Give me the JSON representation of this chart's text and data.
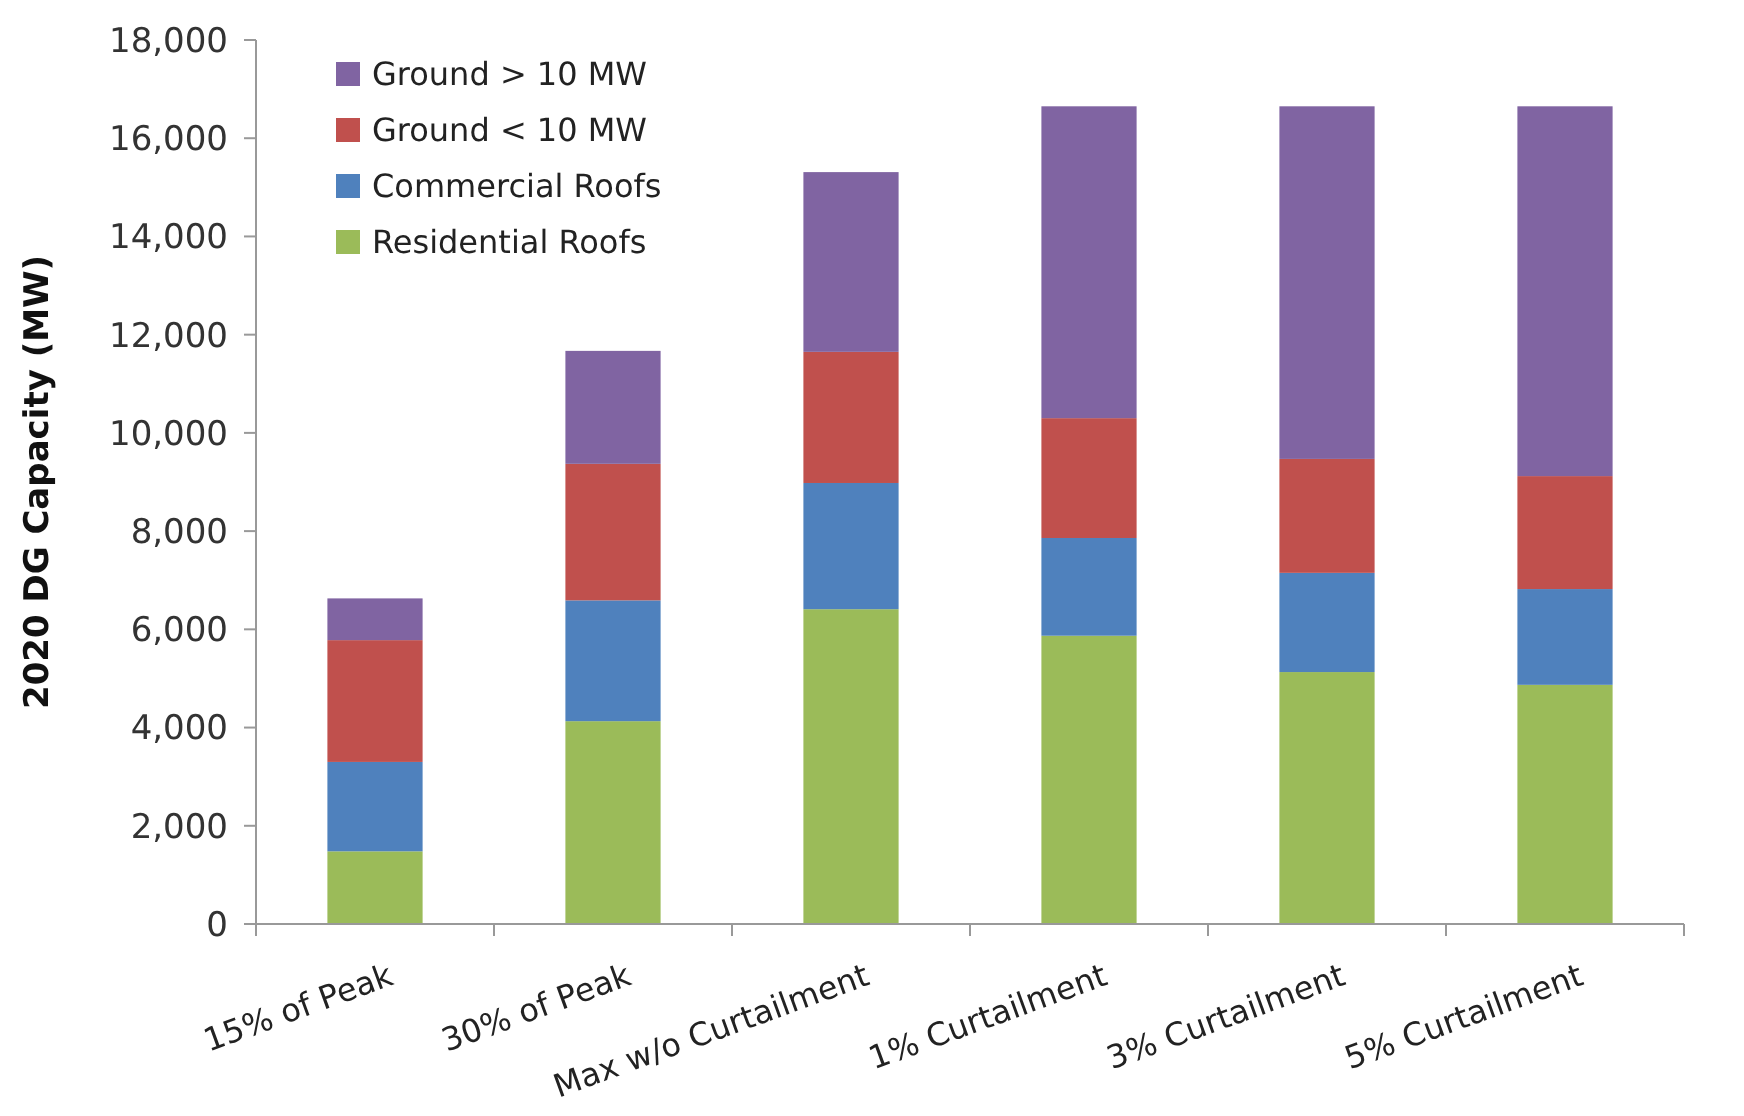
{
  "chart_data": {
    "type": "bar",
    "stacked": true,
    "ylabel": "2020 DG Capacity (MW)",
    "categories": [
      "15% of Peak",
      "30% of Peak",
      "Max w/o Curtailment",
      "1% Curtailment",
      "3% Curtailment",
      "5% Curtailment"
    ],
    "series": [
      {
        "name": "Residential Roofs",
        "color": "#9bbb59",
        "values": [
          1480,
          4130,
          6410,
          5870,
          5130,
          4870
        ]
      },
      {
        "name": "Commercial Roofs",
        "color": "#4f81bd",
        "values": [
          1820,
          2460,
          2570,
          1990,
          2020,
          1950
        ]
      },
      {
        "name": "Ground < 10 MW",
        "color": "#c0504d",
        "values": [
          2480,
          2780,
          2670,
          2440,
          2320,
          2300
        ]
      },
      {
        "name": "Ground > 10 MW",
        "color": "#8064a2",
        "values": [
          850,
          2300,
          3660,
          6350,
          7180,
          7530
        ]
      }
    ],
    "ylim": [
      0,
      18000
    ],
    "yticks": [
      {
        "value": 0,
        "label": "0"
      },
      {
        "value": 2000,
        "label": "2,000"
      },
      {
        "value": 4000,
        "label": "4,000"
      },
      {
        "value": 6000,
        "label": "6,000"
      },
      {
        "value": 8000,
        "label": "8,000"
      },
      {
        "value": 10000,
        "label": "10,000"
      },
      {
        "value": 12000,
        "label": "12,000"
      },
      {
        "value": 14000,
        "label": "14,000"
      },
      {
        "value": 16000,
        "label": "16,000"
      },
      {
        "value": 18000,
        "label": "18,000"
      }
    ],
    "legend": "top left",
    "grid": false
  }
}
